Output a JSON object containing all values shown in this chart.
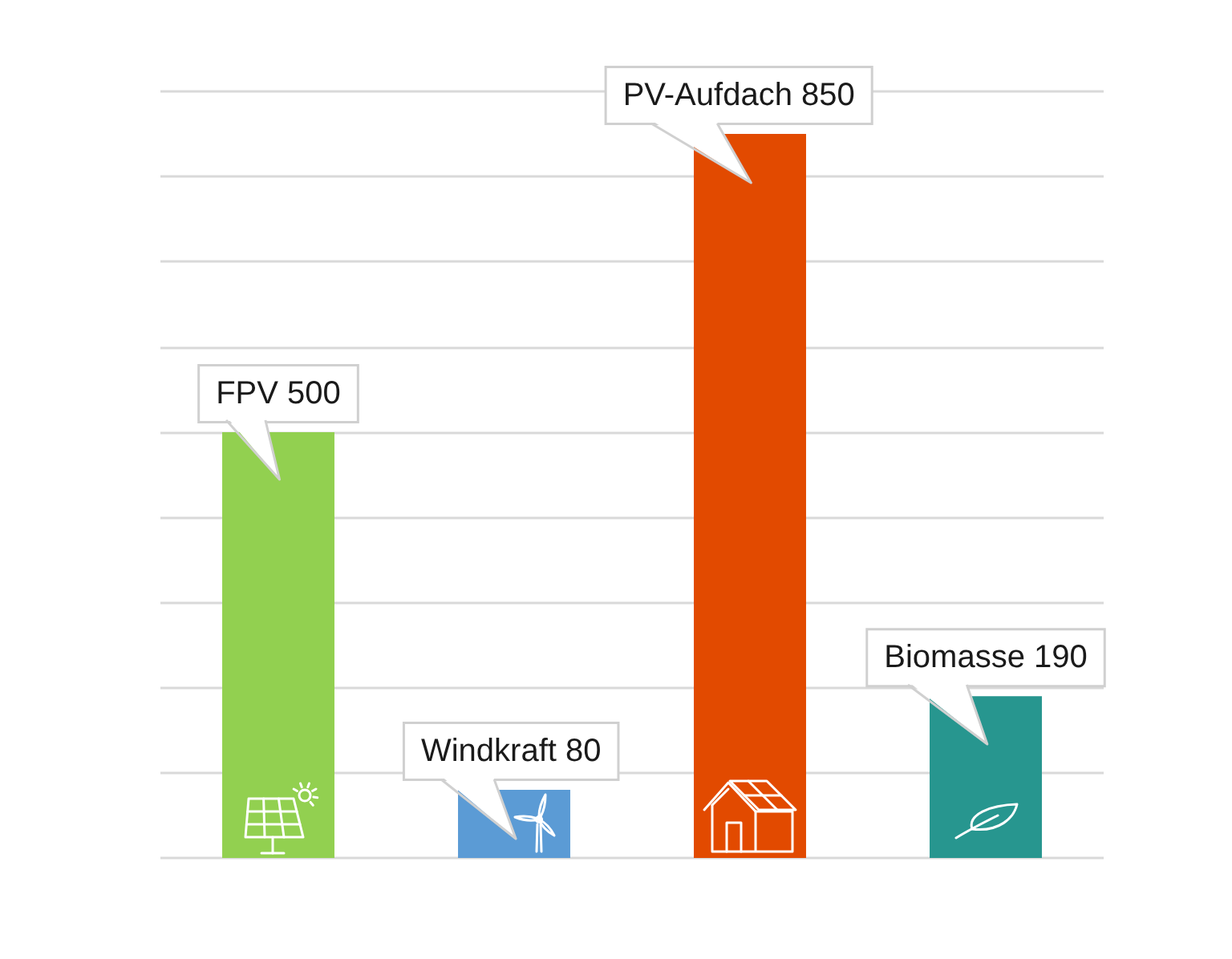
{
  "chart_data": {
    "type": "bar",
    "categories": [
      "FPV",
      "Windkraft",
      "PV-Aufdach",
      "Biomasse"
    ],
    "values": [
      500,
      80,
      850,
      190
    ],
    "colors": [
      "#92d050",
      "#5b9bd5",
      "#e24a00",
      "#27968f"
    ],
    "grid": "y",
    "tick_labels": false,
    "data_labels": true
  }
}
